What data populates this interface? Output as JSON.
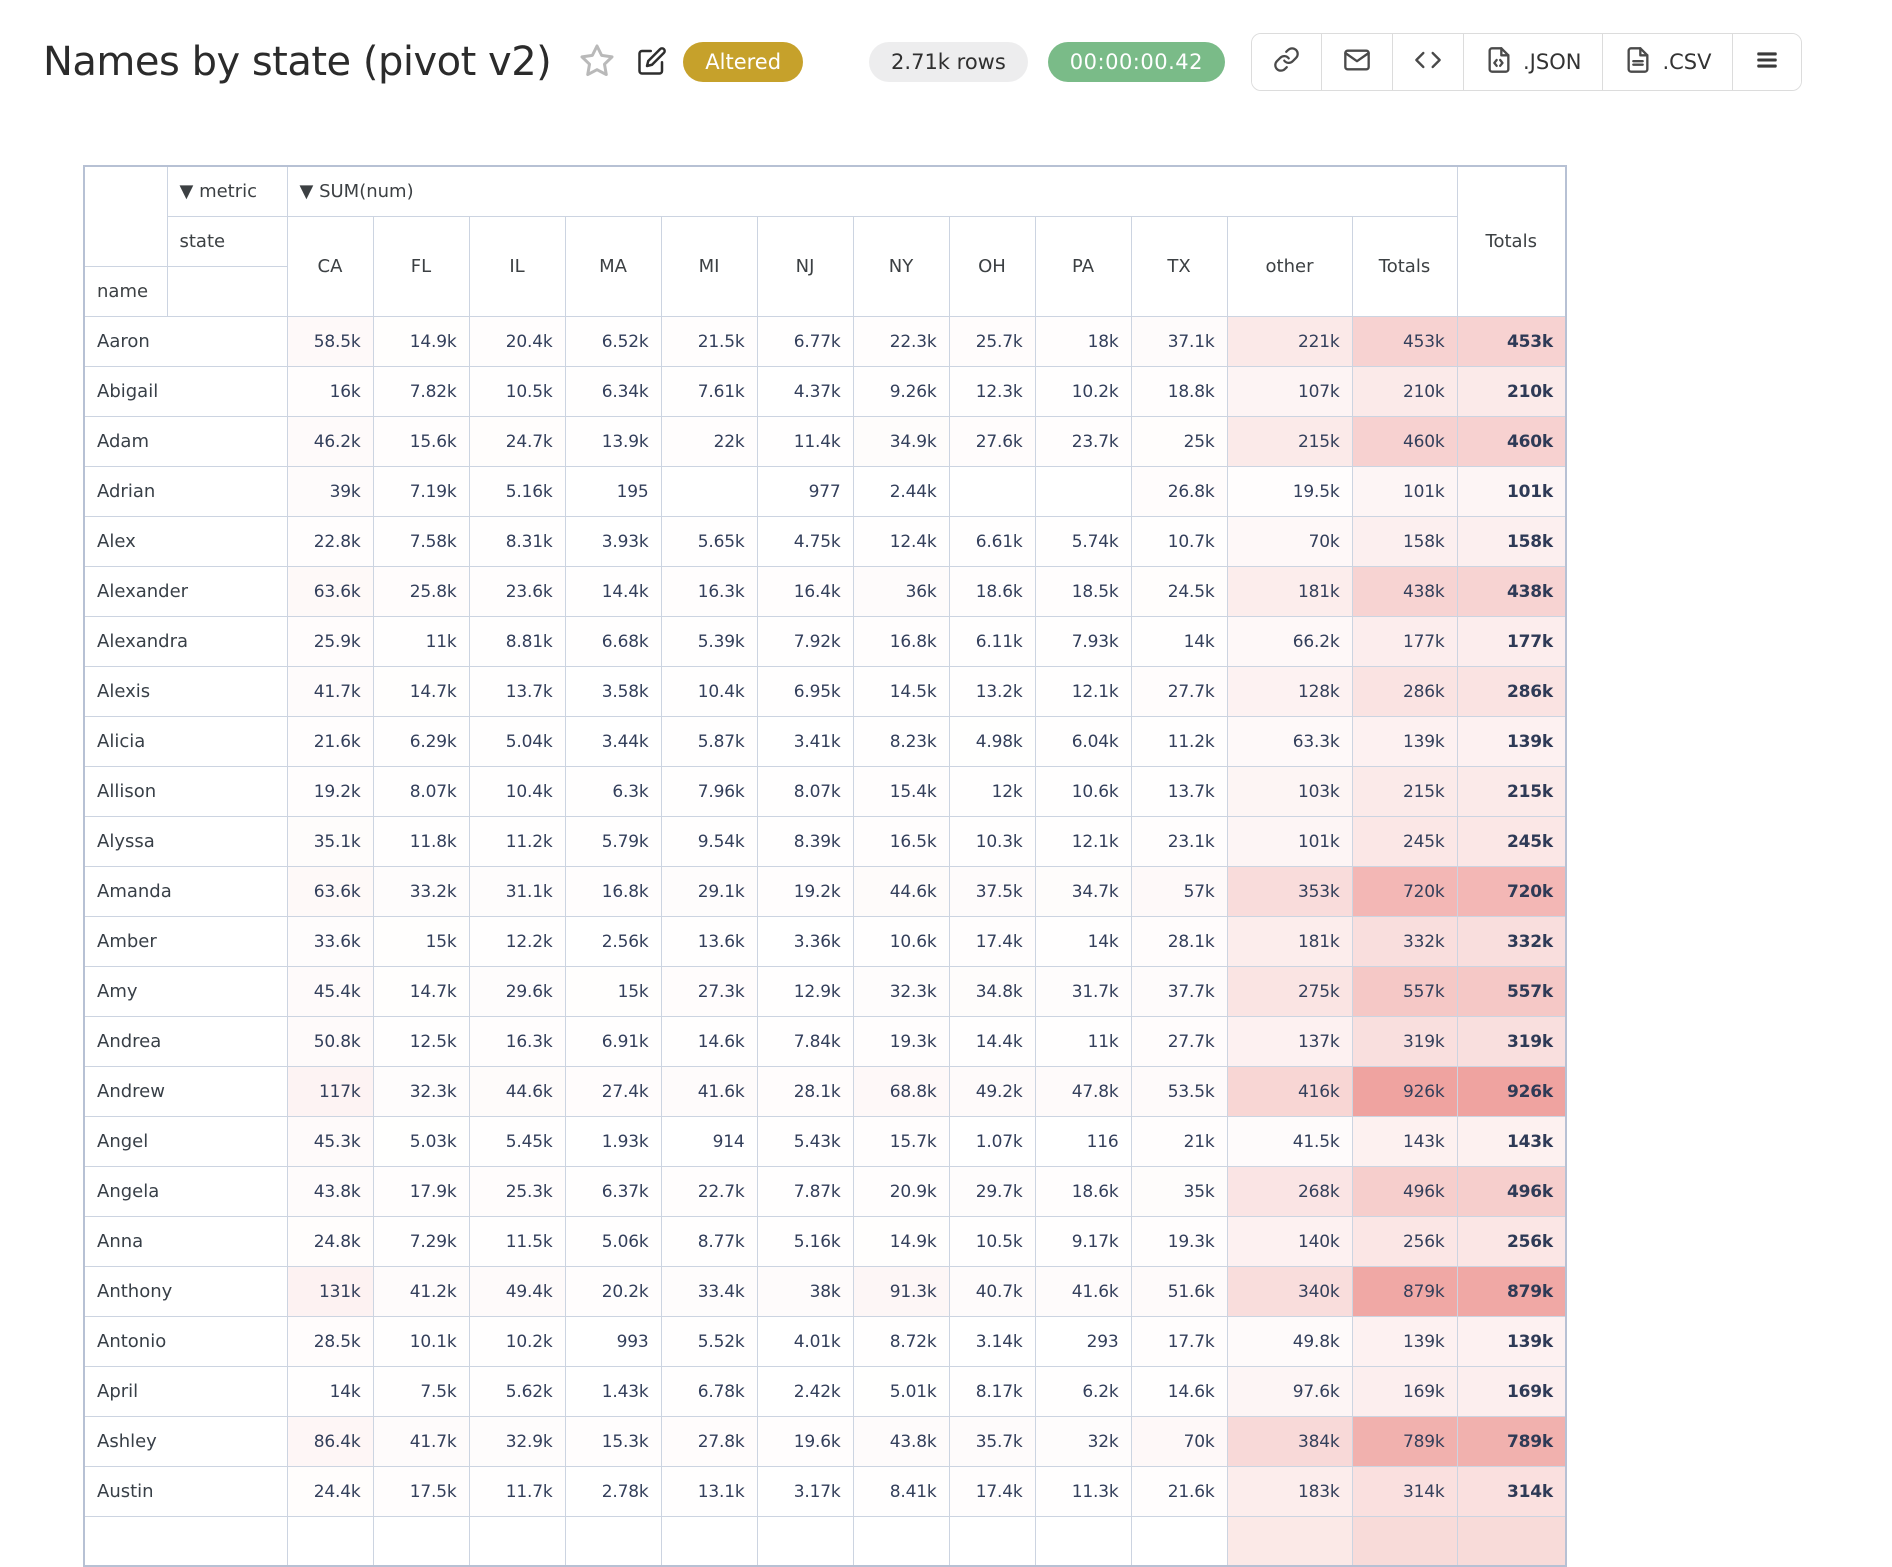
{
  "page": {
    "title": "Names by state (pivot v2)"
  },
  "header": {
    "altered_badge": "Altered",
    "rows_badge": "2.71k rows",
    "timer_badge": "00:00:00.42",
    "buttons": {
      "json_label": ".JSON",
      "csv_label": ".CSV"
    },
    "colors": {
      "altered_bg": "#C6A12B",
      "rows_bg": "#EDEDEE",
      "timer_bg": "#7ABB88"
    }
  },
  "pivot": {
    "metric_header": "▼ metric",
    "sum_header": "▼ SUM(num)",
    "state_label": "state",
    "name_label": "name",
    "totals_label": "Totals",
    "columns": [
      "CA",
      "FL",
      "IL",
      "MA",
      "MI",
      "NJ",
      "NY",
      "OH",
      "PA",
      "TX",
      "other",
      "Totals"
    ],
    "heat": {
      "max_value": 926000,
      "full_color": "#EFA3A0",
      "border": "#CCD4E1",
      "outer_border": "#B7C1D4"
    },
    "partial_row": {
      "other_bg": "#FBE9E7",
      "totals_bg": "#F8DBD9",
      "grand_bg": "#F8DBD9"
    },
    "rows": [
      {
        "name": "Aaron",
        "values": [
          "58.5k",
          "14.9k",
          "20.4k",
          "6.52k",
          "21.5k",
          "6.77k",
          "22.3k",
          "25.7k",
          "18k",
          "37.1k",
          "221k",
          "453k"
        ],
        "total": "453k"
      },
      {
        "name": "Abigail",
        "values": [
          "16k",
          "7.82k",
          "10.5k",
          "6.34k",
          "7.61k",
          "4.37k",
          "9.26k",
          "12.3k",
          "10.2k",
          "18.8k",
          "107k",
          "210k"
        ],
        "total": "210k"
      },
      {
        "name": "Adam",
        "values": [
          "46.2k",
          "15.6k",
          "24.7k",
          "13.9k",
          "22k",
          "11.4k",
          "34.9k",
          "27.6k",
          "23.7k",
          "25k",
          "215k",
          "460k"
        ],
        "total": "460k"
      },
      {
        "name": "Adrian",
        "values": [
          "39k",
          "7.19k",
          "5.16k",
          "195",
          "",
          "977",
          "2.44k",
          "",
          "",
          "26.8k",
          "19.5k",
          "101k"
        ],
        "total": "101k"
      },
      {
        "name": "Alex",
        "values": [
          "22.8k",
          "7.58k",
          "8.31k",
          "3.93k",
          "5.65k",
          "4.75k",
          "12.4k",
          "6.61k",
          "5.74k",
          "10.7k",
          "70k",
          "158k"
        ],
        "total": "158k"
      },
      {
        "name": "Alexander",
        "values": [
          "63.6k",
          "25.8k",
          "23.6k",
          "14.4k",
          "16.3k",
          "16.4k",
          "36k",
          "18.6k",
          "18.5k",
          "24.5k",
          "181k",
          "438k"
        ],
        "total": "438k"
      },
      {
        "name": "Alexandra",
        "values": [
          "25.9k",
          "11k",
          "8.81k",
          "6.68k",
          "5.39k",
          "7.92k",
          "16.8k",
          "6.11k",
          "7.93k",
          "14k",
          "66.2k",
          "177k"
        ],
        "total": "177k"
      },
      {
        "name": "Alexis",
        "values": [
          "41.7k",
          "14.7k",
          "13.7k",
          "3.58k",
          "10.4k",
          "6.95k",
          "14.5k",
          "13.2k",
          "12.1k",
          "27.7k",
          "128k",
          "286k"
        ],
        "total": "286k"
      },
      {
        "name": "Alicia",
        "values": [
          "21.6k",
          "6.29k",
          "5.04k",
          "3.44k",
          "5.87k",
          "3.41k",
          "8.23k",
          "4.98k",
          "6.04k",
          "11.2k",
          "63.3k",
          "139k"
        ],
        "total": "139k"
      },
      {
        "name": "Allison",
        "values": [
          "19.2k",
          "8.07k",
          "10.4k",
          "6.3k",
          "7.96k",
          "8.07k",
          "15.4k",
          "12k",
          "10.6k",
          "13.7k",
          "103k",
          "215k"
        ],
        "total": "215k"
      },
      {
        "name": "Alyssa",
        "values": [
          "35.1k",
          "11.8k",
          "11.2k",
          "5.79k",
          "9.54k",
          "8.39k",
          "16.5k",
          "10.3k",
          "12.1k",
          "23.1k",
          "101k",
          "245k"
        ],
        "total": "245k"
      },
      {
        "name": "Amanda",
        "values": [
          "63.6k",
          "33.2k",
          "31.1k",
          "16.8k",
          "29.1k",
          "19.2k",
          "44.6k",
          "37.5k",
          "34.7k",
          "57k",
          "353k",
          "720k"
        ],
        "total": "720k"
      },
      {
        "name": "Amber",
        "values": [
          "33.6k",
          "15k",
          "12.2k",
          "2.56k",
          "13.6k",
          "3.36k",
          "10.6k",
          "17.4k",
          "14k",
          "28.1k",
          "181k",
          "332k"
        ],
        "total": "332k"
      },
      {
        "name": "Amy",
        "values": [
          "45.4k",
          "14.7k",
          "29.6k",
          "15k",
          "27.3k",
          "12.9k",
          "32.3k",
          "34.8k",
          "31.7k",
          "37.7k",
          "275k",
          "557k"
        ],
        "total": "557k"
      },
      {
        "name": "Andrea",
        "values": [
          "50.8k",
          "12.5k",
          "16.3k",
          "6.91k",
          "14.6k",
          "7.84k",
          "19.3k",
          "14.4k",
          "11k",
          "27.7k",
          "137k",
          "319k"
        ],
        "total": "319k"
      },
      {
        "name": "Andrew",
        "values": [
          "117k",
          "32.3k",
          "44.6k",
          "27.4k",
          "41.6k",
          "28.1k",
          "68.8k",
          "49.2k",
          "47.8k",
          "53.5k",
          "416k",
          "926k"
        ],
        "total": "926k"
      },
      {
        "name": "Angel",
        "values": [
          "45.3k",
          "5.03k",
          "5.45k",
          "1.93k",
          "914",
          "5.43k",
          "15.7k",
          "1.07k",
          "116",
          "21k",
          "41.5k",
          "143k"
        ],
        "total": "143k"
      },
      {
        "name": "Angela",
        "values": [
          "43.8k",
          "17.9k",
          "25.3k",
          "6.37k",
          "22.7k",
          "7.87k",
          "20.9k",
          "29.7k",
          "18.6k",
          "35k",
          "268k",
          "496k"
        ],
        "total": "496k"
      },
      {
        "name": "Anna",
        "values": [
          "24.8k",
          "7.29k",
          "11.5k",
          "5.06k",
          "8.77k",
          "5.16k",
          "14.9k",
          "10.5k",
          "9.17k",
          "19.3k",
          "140k",
          "256k"
        ],
        "total": "256k"
      },
      {
        "name": "Anthony",
        "values": [
          "131k",
          "41.2k",
          "49.4k",
          "20.2k",
          "33.4k",
          "38k",
          "91.3k",
          "40.7k",
          "41.6k",
          "51.6k",
          "340k",
          "879k"
        ],
        "total": "879k"
      },
      {
        "name": "Antonio",
        "values": [
          "28.5k",
          "10.1k",
          "10.2k",
          "993",
          "5.52k",
          "4.01k",
          "8.72k",
          "3.14k",
          "293",
          "17.7k",
          "49.8k",
          "139k"
        ],
        "total": "139k"
      },
      {
        "name": "April",
        "values": [
          "14k",
          "7.5k",
          "5.62k",
          "1.43k",
          "6.78k",
          "2.42k",
          "5.01k",
          "8.17k",
          "6.2k",
          "14.6k",
          "97.6k",
          "169k"
        ],
        "total": "169k"
      },
      {
        "name": "Ashley",
        "values": [
          "86.4k",
          "41.7k",
          "32.9k",
          "15.3k",
          "27.8k",
          "19.6k",
          "43.8k",
          "35.7k",
          "32k",
          "70k",
          "384k",
          "789k"
        ],
        "total": "789k"
      },
      {
        "name": "Austin",
        "values": [
          "24.4k",
          "17.5k",
          "11.7k",
          "2.78k",
          "13.1k",
          "3.17k",
          "8.41k",
          "17.4k",
          "11.3k",
          "21.6k",
          "183k",
          "314k"
        ],
        "total": "314k"
      }
    ]
  }
}
